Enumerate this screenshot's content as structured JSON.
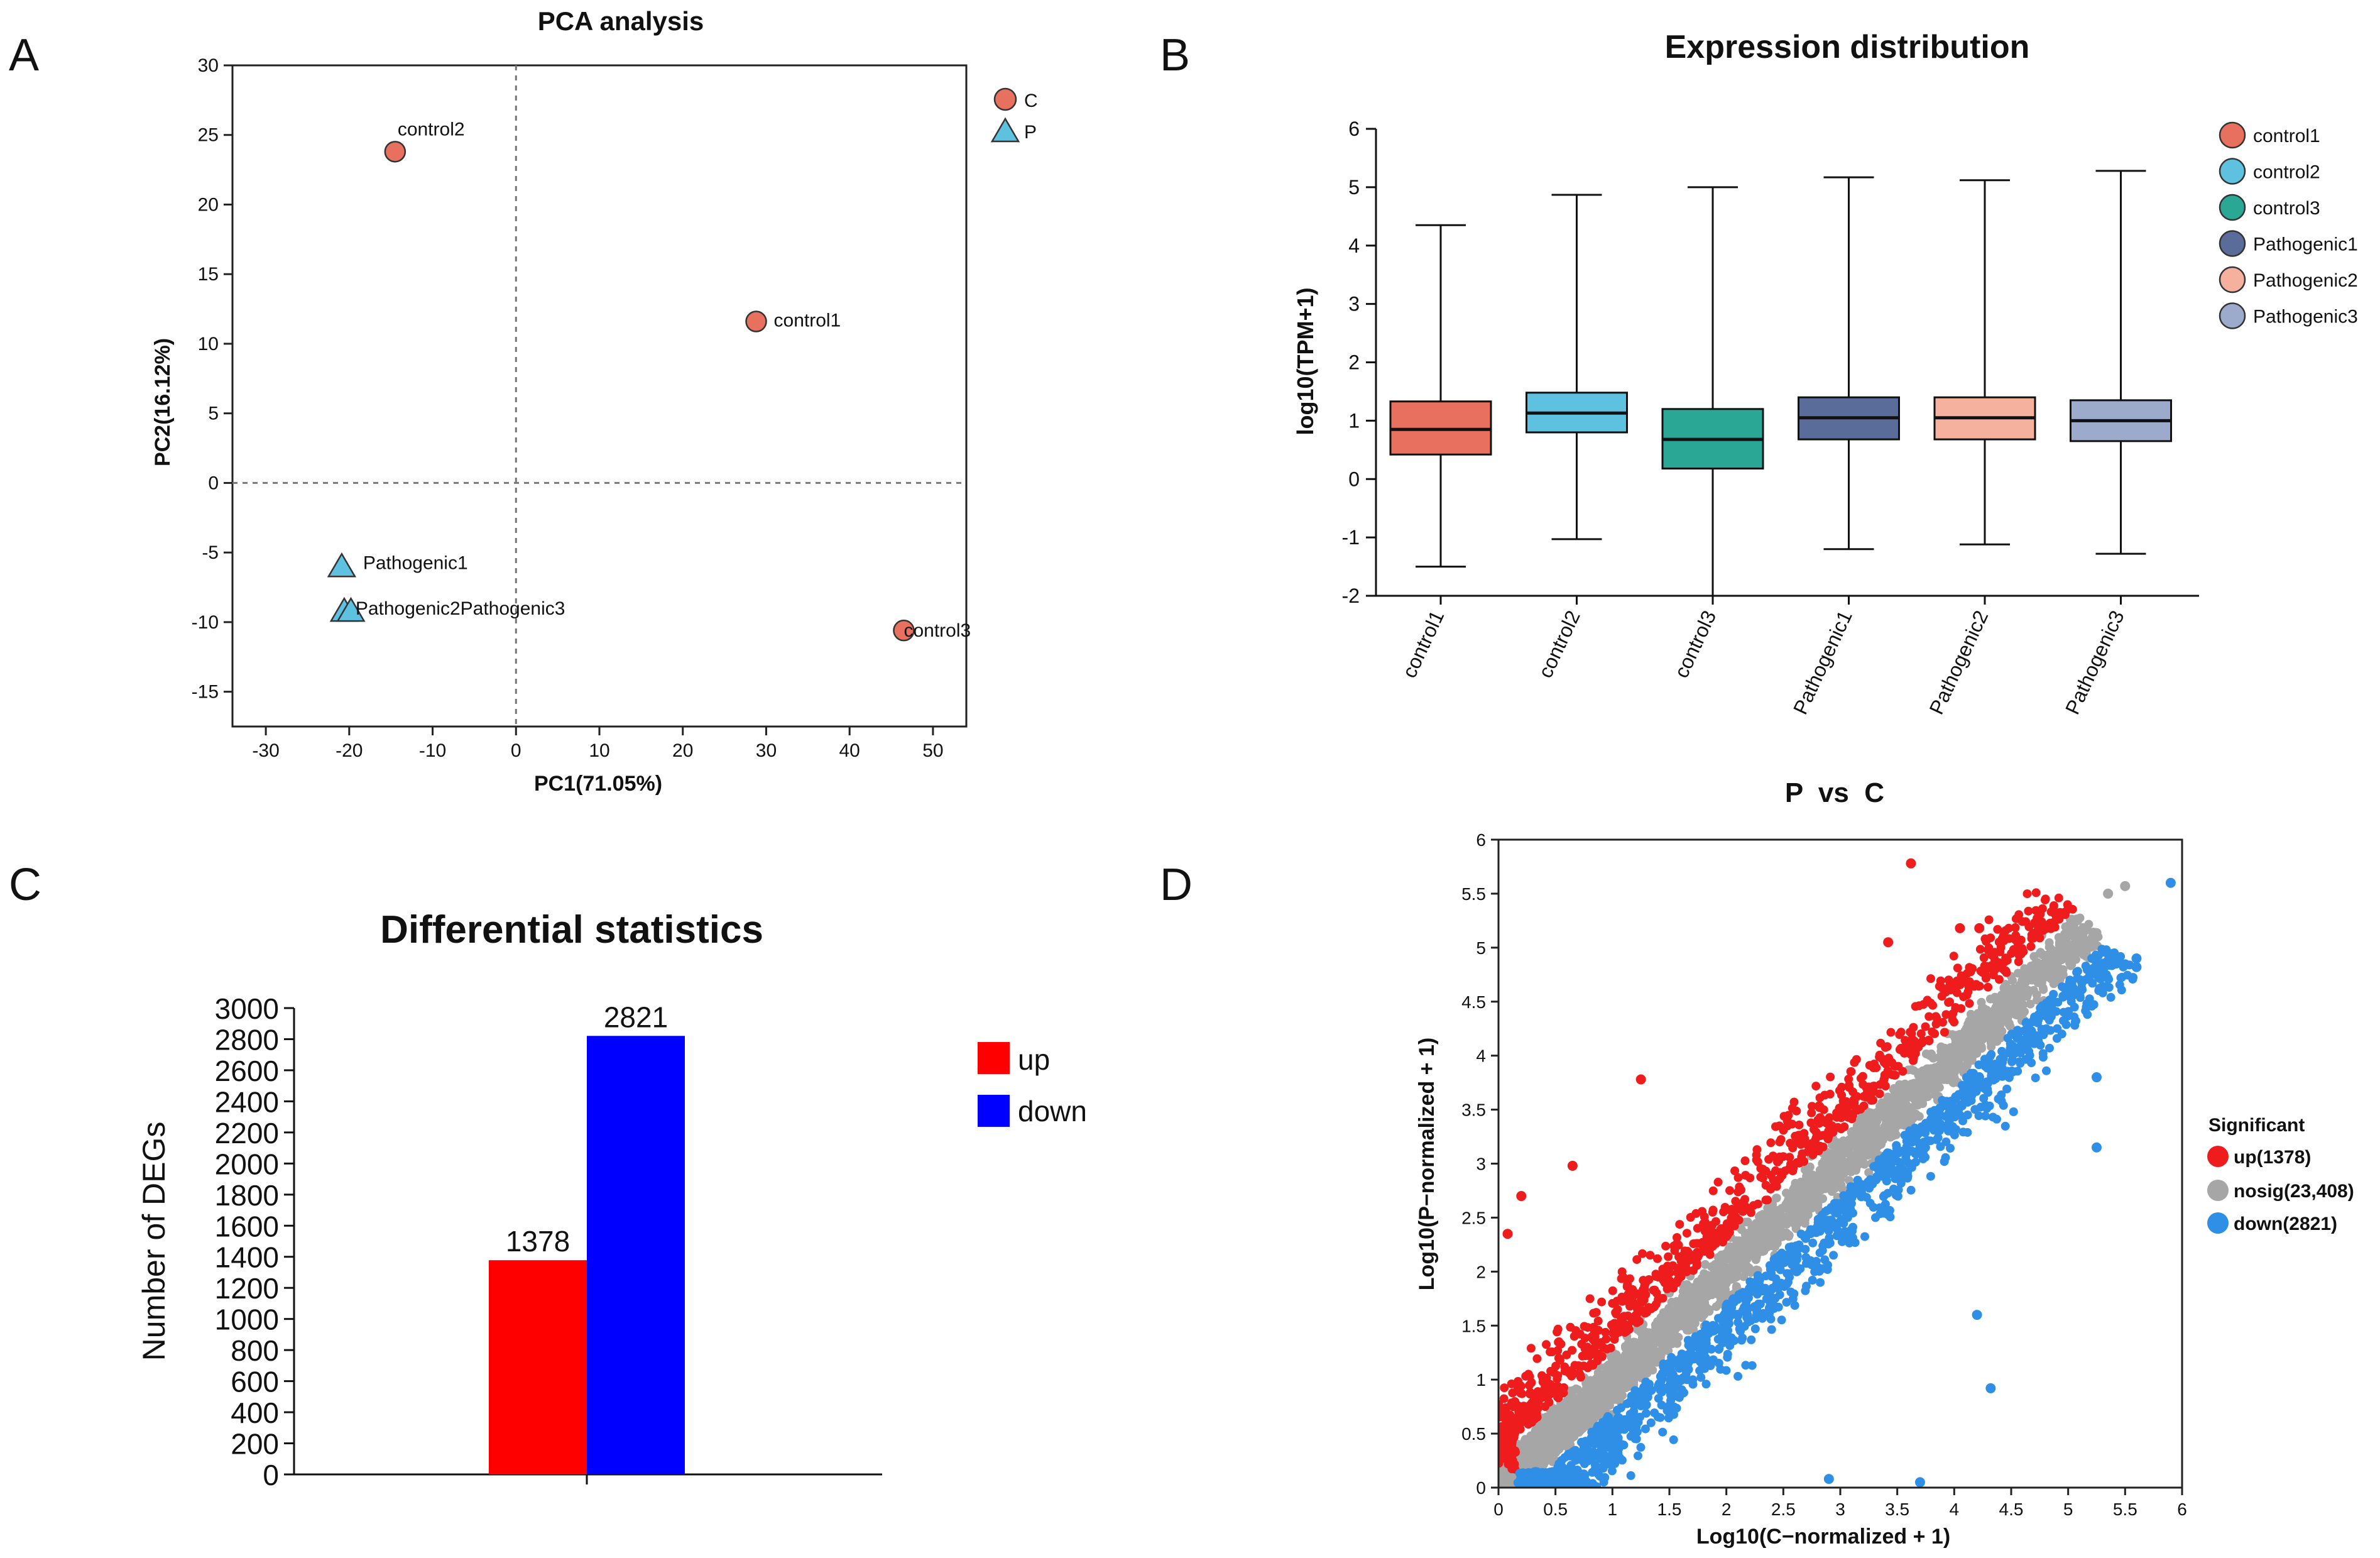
{
  "panels": {
    "A": "A",
    "B": "B",
    "C": "C",
    "D": "D"
  },
  "chart_data": [
    {
      "panel": "A",
      "type": "scatter",
      "title": "PCA analysis",
      "xlabel": "PC1(71.05%)",
      "ylabel": "PC2(16.12%)",
      "xlim": [
        -34,
        54
      ],
      "ylim": [
        -17.5,
        30
      ],
      "xticks": [
        -30,
        -20,
        -10,
        0,
        10,
        20,
        30,
        40,
        50
      ],
      "yticks": [
        -15,
        -10,
        -5,
        0,
        5,
        10,
        15,
        20,
        25,
        30
      ],
      "reference_lines": {
        "x": 0,
        "y": 0
      },
      "legend": [
        {
          "label": "C",
          "marker": "circle",
          "color": "#e8705e"
        },
        {
          "label": "P",
          "marker": "triangle",
          "color": "#5ec1e0"
        }
      ],
      "points": [
        {
          "label": "control1",
          "group": "C",
          "x": 28.8,
          "y": 11.6
        },
        {
          "label": "control2",
          "group": "C",
          "x": -14.5,
          "y": 23.8
        },
        {
          "label": "control3",
          "group": "C",
          "x": 46.5,
          "y": -10.6
        },
        {
          "label": "Pathogenic1",
          "group": "P",
          "x": -20.9,
          "y": -6.0
        },
        {
          "label": "Pathogenic2",
          "group": "P",
          "x": -20.6,
          "y": -9.2
        },
        {
          "label": "Pathogenic3",
          "group": "P",
          "x": -19.8,
          "y": -9.2
        }
      ],
      "point_labels": [
        {
          "text": "control1"
        },
        {
          "text": "control2"
        },
        {
          "text": "control3"
        },
        {
          "text": "Pathogenic1"
        },
        {
          "text": "Pathogenic2Pathogenic3"
        }
      ]
    },
    {
      "panel": "B",
      "type": "box",
      "title": "Expression distribution",
      "xlabel": "",
      "ylabel": "log10(TPM+1)",
      "ylim": [
        -2,
        6
      ],
      "yticks": [
        -2,
        -1,
        0,
        1,
        2,
        3,
        4,
        5,
        6
      ],
      "categories": [
        "control1",
        "control2",
        "control3",
        "Pathogenic1",
        "Pathogenic2",
        "Pathogenic3"
      ],
      "boxes": [
        {
          "name": "control1",
          "min": -1.5,
          "q1": 0.42,
          "median": 0.85,
          "q3": 1.33,
          "max": 4.35,
          "color": "#e8705e"
        },
        {
          "name": "control2",
          "min": -1.03,
          "q1": 0.8,
          "median": 1.13,
          "q3": 1.48,
          "max": 4.87,
          "color": "#5ec1e0"
        },
        {
          "name": "control3",
          "min": -2.0,
          "q1": 0.18,
          "median": 0.68,
          "q3": 1.2,
          "max": 5.0,
          "color": "#2aa795"
        },
        {
          "name": "Pathogenic1",
          "min": -1.2,
          "q1": 0.68,
          "median": 1.05,
          "q3": 1.4,
          "max": 5.17,
          "color": "#5a6c99"
        },
        {
          "name": "Pathogenic2",
          "min": -1.12,
          "q1": 0.68,
          "median": 1.05,
          "q3": 1.4,
          "max": 5.12,
          "color": "#f6b19e"
        },
        {
          "name": "Pathogenic3",
          "min": -1.28,
          "q1": 0.65,
          "median": 1.0,
          "q3": 1.35,
          "max": 5.28,
          "color": "#9caacb"
        }
      ],
      "legend": [
        "control1",
        "control2",
        "control3",
        "Pathogenic1",
        "Pathogenic2",
        "Pathogenic3"
      ]
    },
    {
      "panel": "C",
      "type": "bar",
      "title": "Differential statistics",
      "xlabel": "",
      "ylabel": "Number of DEGs",
      "ylim": [
        0,
        3000
      ],
      "yticks": [
        0,
        200,
        400,
        600,
        800,
        1000,
        1200,
        1400,
        1600,
        1800,
        2000,
        2200,
        2400,
        2600,
        2800,
        3000
      ],
      "series": [
        {
          "name": "up",
          "value": 1378,
          "label": "1378",
          "color": "#ff0000"
        },
        {
          "name": "down",
          "value": 2821,
          "label": "2821",
          "color": "#0000ff"
        }
      ]
    },
    {
      "panel": "D",
      "type": "scatter",
      "title": "P  vs  C",
      "xlabel": "Log10(C−normalized + 1)",
      "ylabel": "Log10(P−normalized + 1)",
      "xlim": [
        0,
        6
      ],
      "ylim": [
        0,
        6
      ],
      "xticks": [
        0,
        0.5,
        1,
        1.5,
        2,
        2.5,
        3,
        3.5,
        4,
        4.5,
        5,
        5.5,
        6
      ],
      "yticks": [
        0,
        0.5,
        1,
        1.5,
        2,
        2.5,
        3,
        3.5,
        4,
        4.5,
        5,
        5.5,
        6
      ],
      "legend_title": "Significant",
      "groups": [
        {
          "name": "up",
          "label": "up(1378)",
          "count": 1378,
          "color": "#ee1c1c"
        },
        {
          "name": "nosig",
          "label": "nosig(23,408)",
          "count": 23408,
          "color": "#a6a6a6"
        },
        {
          "name": "down",
          "label": "down(2821)",
          "count": 2821,
          "color": "#2f8fe6"
        }
      ],
      "points": [
        {
          "group": "up",
          "x": 3.62,
          "y": 5.78
        },
        {
          "group": "up",
          "x": 4.05,
          "y": 5.18
        },
        {
          "group": "up",
          "x": 4.22,
          "y": 5.18
        },
        {
          "group": "up",
          "x": 3.42,
          "y": 5.05
        },
        {
          "group": "up",
          "x": 1.25,
          "y": 3.78
        },
        {
          "group": "up",
          "x": 0.65,
          "y": 2.98
        },
        {
          "group": "up",
          "x": 0.2,
          "y": 2.7
        },
        {
          "group": "up",
          "x": 0.08,
          "y": 2.35
        },
        {
          "group": "nosig",
          "x": 5.5,
          "y": 5.57
        },
        {
          "group": "nosig",
          "x": 5.35,
          "y": 5.5
        },
        {
          "group": "nosig",
          "x": 5.1,
          "y": 5.0
        },
        {
          "group": "down",
          "x": 5.9,
          "y": 5.6
        },
        {
          "group": "down",
          "x": 5.6,
          "y": 4.9
        },
        {
          "group": "down",
          "x": 5.6,
          "y": 4.82
        },
        {
          "group": "down",
          "x": 5.25,
          "y": 3.8
        },
        {
          "group": "down",
          "x": 5.25,
          "y": 3.15
        },
        {
          "group": "down",
          "x": 4.2,
          "y": 1.6
        },
        {
          "group": "down",
          "x": 4.32,
          "y": 0.92
        },
        {
          "group": "down",
          "x": 3.7,
          "y": 0.05
        },
        {
          "group": "down",
          "x": 2.9,
          "y": 0.08
        }
      ]
    }
  ]
}
